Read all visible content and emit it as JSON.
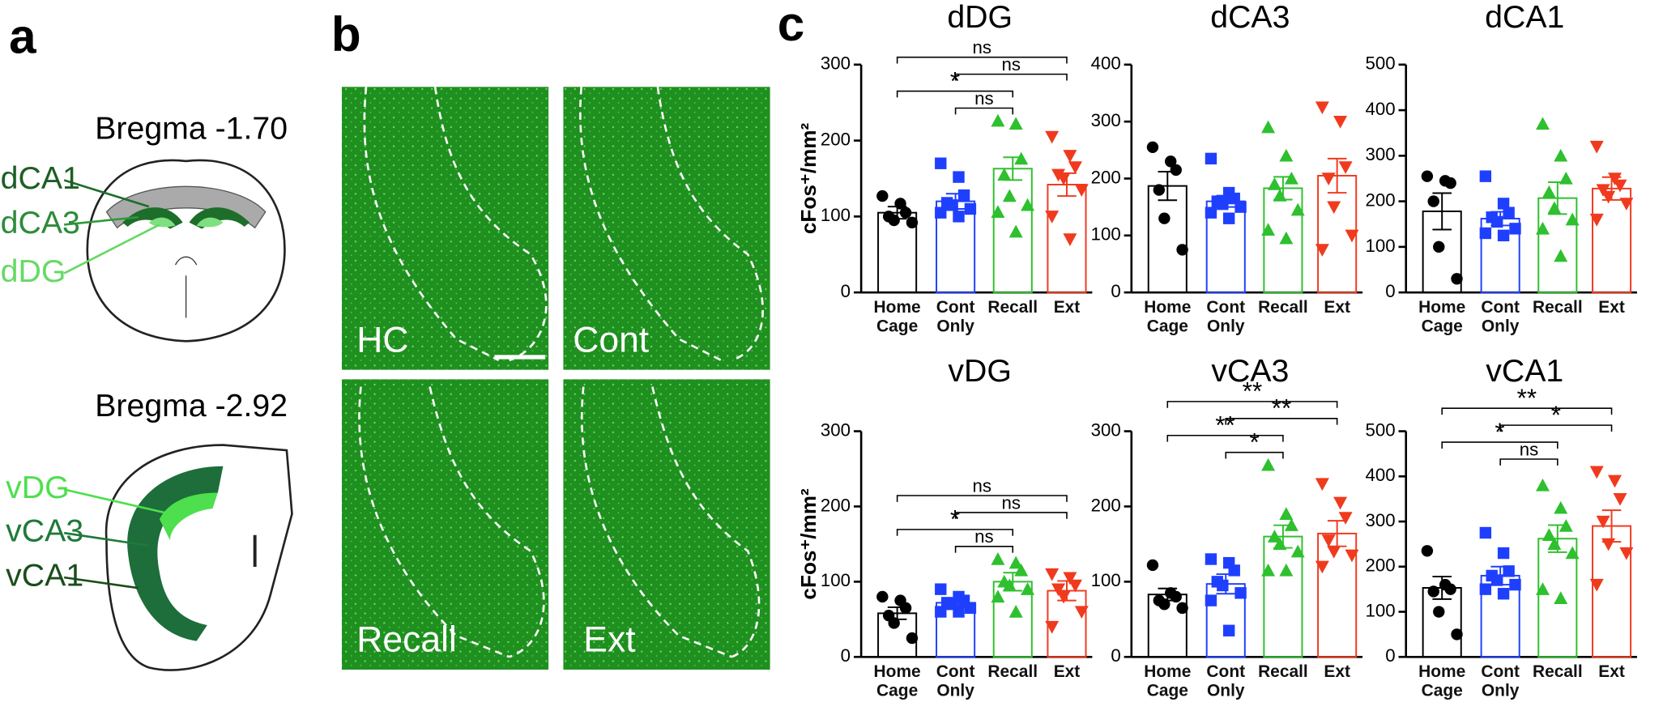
{
  "panel_a": {
    "letter": "a",
    "top_section": "Bregma -1.70",
    "top_regions": [
      "dCA1",
      "dCA3",
      "dDG"
    ],
    "bottom_section": "Bregma -2.92",
    "bottom_regions": [
      "vDG",
      "vCA3",
      "vCA1"
    ]
  },
  "panel_b": {
    "letter": "b",
    "images": [
      "HC",
      "Cont",
      "Recall",
      "Ext"
    ]
  },
  "panel_c": {
    "letter": "c"
  },
  "chart_data": [
    {
      "type": "bar",
      "title": "dDG",
      "ylabel": "cFos⁺/mm²",
      "ylim": [
        0,
        300
      ],
      "yticks": [
        0,
        100,
        200,
        300
      ],
      "categories": [
        "Home Cage",
        "Cont Only",
        "Recall",
        "Ext"
      ],
      "colors": [
        "#000000",
        "#1f3fff",
        "#2ec02e",
        "#f03a1e"
      ],
      "markers": [
        "circle",
        "square",
        "triangle-up",
        "triangle-down"
      ],
      "values": [
        105,
        120,
        163,
        142
      ],
      "errors": [
        8,
        10,
        15,
        15
      ],
      "points": [
        [
          127,
          117,
          105,
          100,
          95,
          92
        ],
        [
          170,
          152,
          128,
          118,
          115,
          110,
          105,
          100
        ],
        [
          226,
          222,
          176,
          155,
          127,
          115,
          106,
          80
        ],
        [
          205,
          180,
          165,
          155,
          150,
          135,
          100,
          70
        ]
      ],
      "comparisons": [
        {
          "pair": [
            1,
            2
          ],
          "label": "ns"
        },
        {
          "pair": [
            0,
            2
          ],
          "label": "*"
        },
        {
          "pair": [
            1,
            3
          ],
          "label": "ns"
        },
        {
          "pair": [
            0,
            3
          ],
          "label": "ns"
        }
      ]
    },
    {
      "type": "bar",
      "title": "dCA3",
      "ylim": [
        0,
        400
      ],
      "yticks": [
        0,
        100,
        200,
        300,
        400
      ],
      "categories": [
        "Home Cage",
        "Cont Only",
        "Recall",
        "Ext"
      ],
      "colors": [
        "#000000",
        "#1f3fff",
        "#2ec02e",
        "#f03a1e"
      ],
      "markers": [
        "circle",
        "square",
        "triangle-up",
        "triangle-down"
      ],
      "values": [
        187,
        160,
        183,
        205
      ],
      "errors": [
        25,
        10,
        20,
        30
      ],
      "points": [
        [
          255,
          230,
          215,
          180,
          130,
          75
        ],
        [
          235,
          175,
          165,
          160,
          155,
          150,
          140,
          130
        ],
        [
          290,
          240,
          200,
          190,
          170,
          145,
          110,
          95
        ],
        [
          325,
          300,
          220,
          200,
          150,
          100,
          75
        ]
      ],
      "comparisons": []
    },
    {
      "type": "bar",
      "title": "dCA1",
      "ylim": [
        0,
        500
      ],
      "yticks": [
        0,
        100,
        200,
        300,
        400,
        500
      ],
      "categories": [
        "Home Cage",
        "Cont Only",
        "Recall",
        "Ext"
      ],
      "colors": [
        "#000000",
        "#1f3fff",
        "#2ec02e",
        "#f03a1e"
      ],
      "markers": [
        "circle",
        "square",
        "triangle-up",
        "triangle-down"
      ],
      "values": [
        178,
        162,
        207,
        228
      ],
      "errors": [
        40,
        15,
        35,
        25
      ],
      "points": [
        [
          255,
          245,
          240,
          200,
          100,
          30
        ],
        [
          255,
          195,
          175,
          165,
          155,
          140,
          130,
          125
        ],
        [
          370,
          300,
          250,
          220,
          185,
          160,
          140,
          80
        ],
        [
          320,
          250,
          235,
          225,
          210,
          195,
          160
        ]
      ],
      "comparisons": []
    },
    {
      "type": "bar",
      "title": "vDG",
      "ylabel": "cFos⁺/mm²",
      "ylim": [
        0,
        300
      ],
      "yticks": [
        0,
        100,
        200,
        300
      ],
      "categories": [
        "Home Cage",
        "Cont Only",
        "Recall",
        "Ext"
      ],
      "colors": [
        "#000000",
        "#1f3fff",
        "#2ec02e",
        "#f03a1e"
      ],
      "markers": [
        "circle",
        "square",
        "triangle-up",
        "triangle-down"
      ],
      "values": [
        58,
        72,
        100,
        88
      ],
      "errors": [
        8,
        5,
        12,
        13
      ],
      "points": [
        [
          80,
          75,
          65,
          55,
          45,
          25
        ],
        [
          90,
          80,
          75,
          72,
          70,
          65,
          60,
          60
        ],
        [
          130,
          125,
          115,
          100,
          95,
          90,
          80,
          60
        ],
        [
          110,
          105,
          95,
          90,
          80,
          60,
          40
        ]
      ],
      "comparisons": [
        {
          "pair": [
            1,
            2
          ],
          "label": "ns"
        },
        {
          "pair": [
            0,
            2
          ],
          "label": "*"
        },
        {
          "pair": [
            1,
            3
          ],
          "label": "ns"
        },
        {
          "pair": [
            0,
            3
          ],
          "label": "ns"
        }
      ]
    },
    {
      "type": "bar",
      "title": "vCA3",
      "ylim": [
        0,
        300
      ],
      "yticks": [
        0,
        100,
        200,
        300
      ],
      "categories": [
        "Home Cage",
        "Cont Only",
        "Recall",
        "Ext"
      ],
      "colors": [
        "#000000",
        "#1f3fff",
        "#2ec02e",
        "#f03a1e"
      ],
      "markers": [
        "circle",
        "square",
        "triangle-up",
        "triangle-down"
      ],
      "values": [
        83,
        97,
        160,
        164
      ],
      "errors": [
        8,
        13,
        15,
        17
      ],
      "points": [
        [
          122,
          85,
          80,
          75,
          70,
          65
        ],
        [
          130,
          125,
          115,
          100,
          95,
          85,
          75,
          35
        ],
        [
          255,
          190,
          175,
          160,
          150,
          140,
          115,
          115
        ],
        [
          230,
          205,
          185,
          155,
          140,
          135,
          120
        ]
      ],
      "comparisons": [
        {
          "pair": [
            1,
            2
          ],
          "label": "*"
        },
        {
          "pair": [
            0,
            2
          ],
          "label": "**"
        },
        {
          "pair": [
            1,
            3
          ],
          "label": "**"
        },
        {
          "pair": [
            0,
            3
          ],
          "label": "**"
        }
      ]
    },
    {
      "type": "bar",
      "title": "vCA1",
      "ylim": [
        0,
        500
      ],
      "yticks": [
        0,
        100,
        200,
        300,
        400,
        500
      ],
      "categories": [
        "Home Cage",
        "Cont Only",
        "Recall",
        "Ext"
      ],
      "colors": [
        "#000000",
        "#1f3fff",
        "#2ec02e",
        "#f03a1e"
      ],
      "markers": [
        "circle",
        "square",
        "triangle-up",
        "triangle-down"
      ],
      "values": [
        153,
        180,
        262,
        290
      ],
      "errors": [
        25,
        20,
        30,
        35
      ],
      "points": [
        [
          235,
          160,
          150,
          145,
          100,
          50
        ],
        [
          275,
          230,
          190,
          180,
          170,
          160,
          150,
          140
        ],
        [
          380,
          330,
          290,
          270,
          250,
          230,
          150,
          130
        ],
        [
          410,
          390,
          350,
          300,
          250,
          230,
          160
        ]
      ],
      "comparisons": [
        {
          "pair": [
            1,
            2
          ],
          "label": "ns"
        },
        {
          "pair": [
            0,
            2
          ],
          "label": "*"
        },
        {
          "pair": [
            1,
            3
          ],
          "label": "*"
        },
        {
          "pair": [
            0,
            3
          ],
          "label": "**"
        }
      ]
    }
  ]
}
